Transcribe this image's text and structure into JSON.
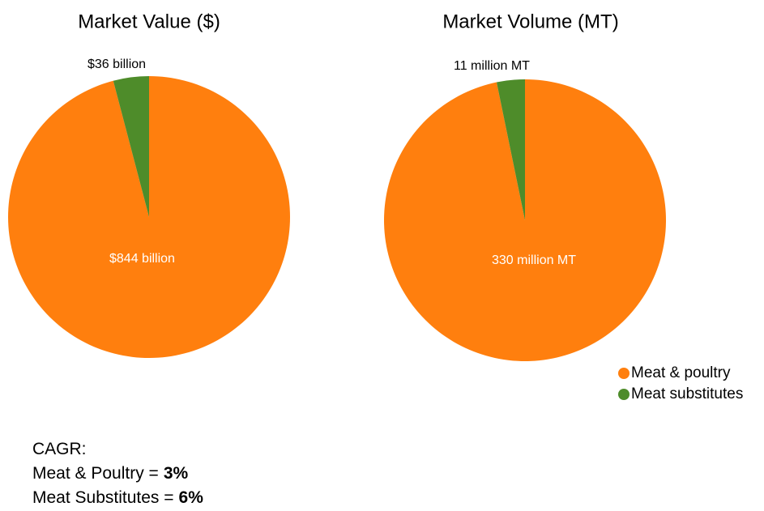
{
  "chart_data": [
    {
      "type": "pie",
      "title": "Market Value ($)",
      "categories": [
        "Meat & poultry",
        "Meat substitutes"
      ],
      "values": [
        844,
        36
      ],
      "value_labels": [
        "$844 billion",
        "$36 billion"
      ],
      "colors": [
        "#ff7f0e",
        "#4e8c2a"
      ]
    },
    {
      "type": "pie",
      "title": "Market Volume (MT)",
      "categories": [
        "Meat & poultry",
        "Meat substitutes"
      ],
      "values": [
        330,
        11
      ],
      "value_labels": [
        "330 million MT",
        "11 million MT"
      ],
      "colors": [
        "#ff7f0e",
        "#4e8c2a"
      ]
    }
  ],
  "cagr": {
    "title": "CAGR:",
    "items": [
      {
        "label": "Meat & Poultry =",
        "value": "3%"
      },
      {
        "label": "Meat Substitutes =",
        "value": "6%"
      }
    ]
  }
}
